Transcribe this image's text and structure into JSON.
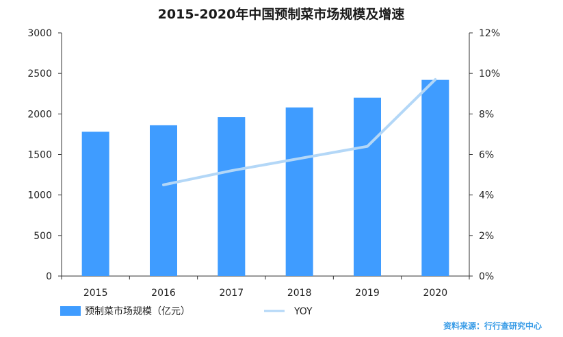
{
  "chart_data": {
    "type": "bar",
    "title": "2015-2020年中国预制菜市场规模及增速",
    "categories": [
      "2015",
      "2016",
      "2017",
      "2018",
      "2019",
      "2020"
    ],
    "series": [
      {
        "name": "预制菜市场规模（亿元）",
        "type": "bar",
        "axis": "left",
        "color": "#3f9cff",
        "values": [
          1780,
          1860,
          1960,
          2080,
          2200,
          2420
        ]
      },
      {
        "name": "YOY",
        "type": "line",
        "axis": "right",
        "color": "#b3d7f7",
        "values": [
          null,
          4.5,
          5.2,
          5.8,
          6.4,
          9.7
        ]
      }
    ],
    "y_left": {
      "min": 0,
      "max": 3000,
      "ticks": [
        "0",
        "500",
        "1000",
        "1500",
        "2000",
        "2500",
        "3000"
      ]
    },
    "y_right": {
      "min": 0,
      "max": 12,
      "ticks": [
        "0%",
        "2%",
        "4%",
        "6%",
        "8%",
        "10%",
        "12%"
      ]
    },
    "grid": false,
    "legend": "bottom-left"
  },
  "source_note": "资料来源：行行查研究中心"
}
